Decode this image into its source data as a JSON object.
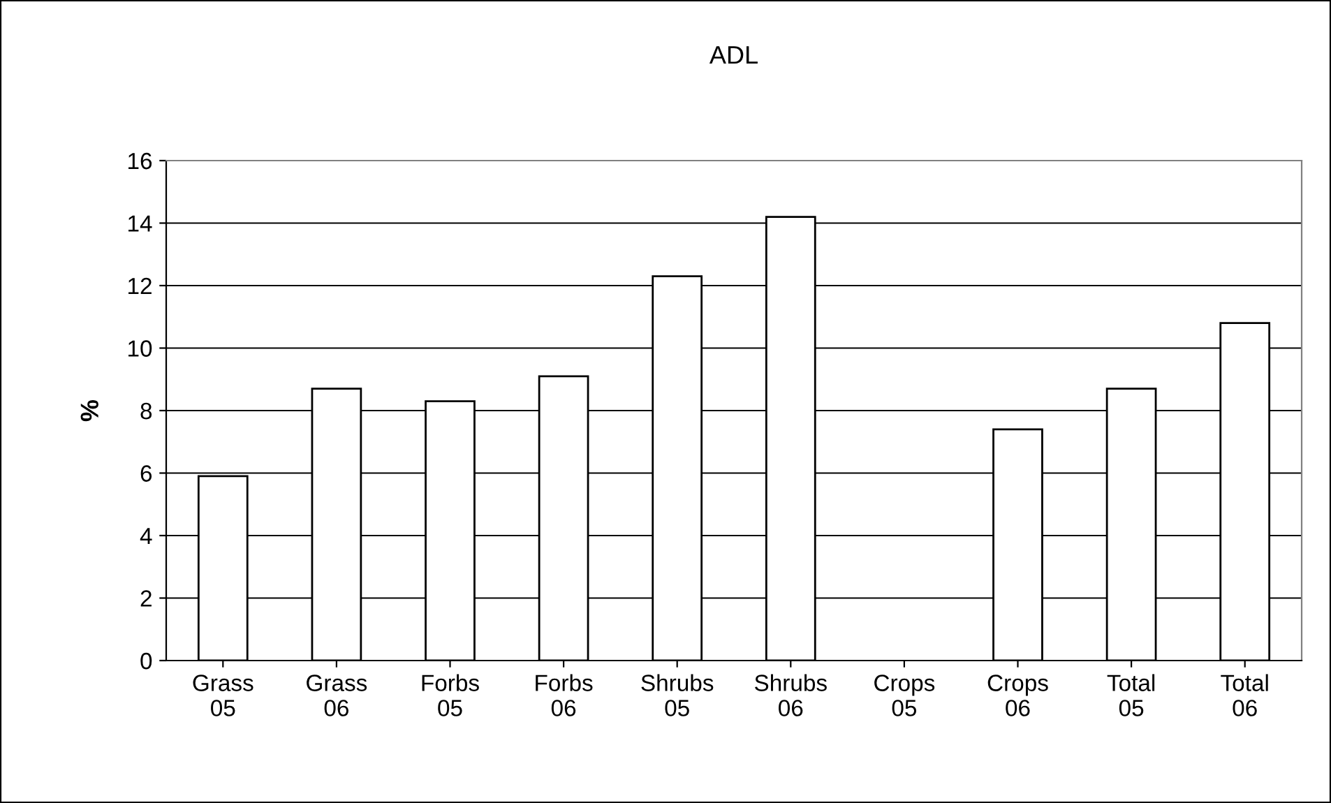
{
  "chart_data": {
    "type": "bar",
    "title": "ADL",
    "ylabel": "%",
    "categories": [
      "Grass\n05",
      "Grass\n06",
      "Forbs\n05",
      "Forbs\n06",
      "Shrubs\n05",
      "Shrubs\n06",
      "Crops\n05",
      "Crops\n06",
      "Total\n05",
      "Total\n06"
    ],
    "values": [
      5.9,
      8.7,
      8.3,
      9.1,
      12.3,
      14.2,
      null,
      7.4,
      8.7,
      10.8
    ],
    "color": "#ffffff",
    "ylim": [
      0,
      16
    ],
    "yticks": [
      0,
      2,
      4,
      6,
      8,
      10,
      12,
      14,
      16
    ],
    "grid": "y",
    "legend": false
  }
}
